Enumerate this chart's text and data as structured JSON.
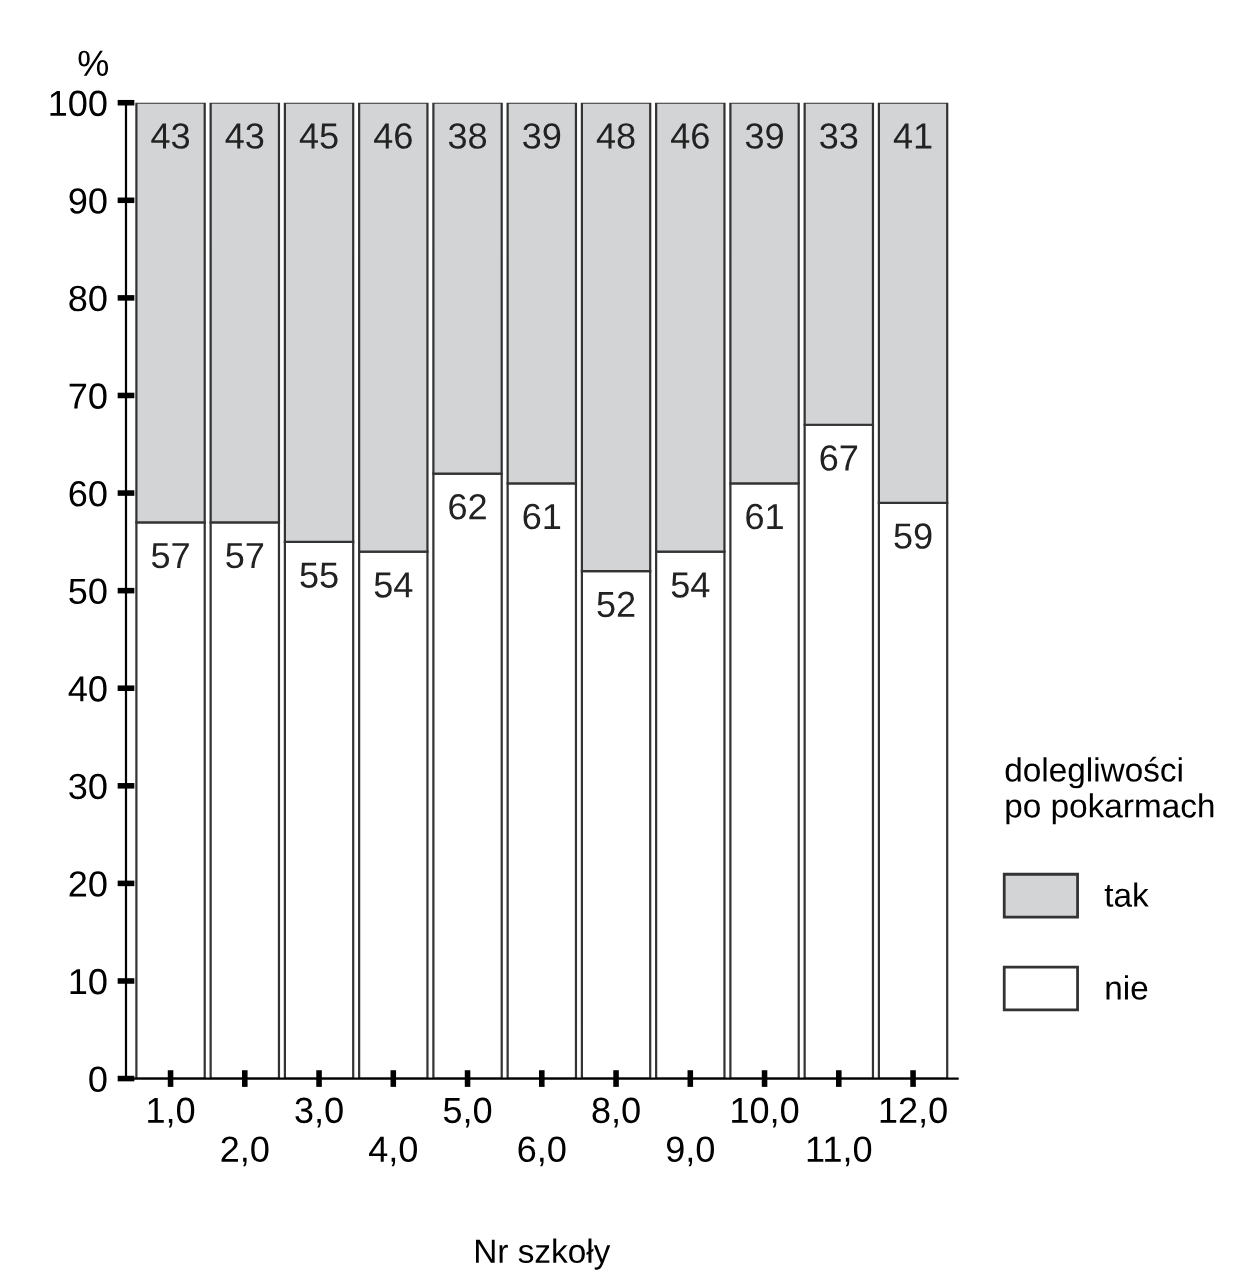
{
  "chart_data": {
    "type": "bar",
    "stacked": true,
    "xlabel": "Nr szkoły",
    "ylabel": "%",
    "categories": [
      "1,0",
      "2,0",
      "3,0",
      "4,0",
      "5,0",
      "6,0",
      "8,0",
      "9,0",
      "10,0",
      "11,0",
      "12,0"
    ],
    "series": [
      {
        "name": "nie",
        "color": "#ffffff",
        "values": [
          57,
          57,
          55,
          54,
          62,
          61,
          52,
          54,
          61,
          67,
          59
        ]
      },
      {
        "name": "tak",
        "color": "#d3d4d6",
        "values": [
          43,
          43,
          45,
          46,
          38,
          39,
          48,
          46,
          39,
          33,
          41
        ]
      }
    ],
    "ylim": [
      0,
      100
    ],
    "yticks": [
      0,
      10,
      20,
      30,
      40,
      50,
      60,
      70,
      80,
      90,
      100
    ],
    "data_labels": true,
    "grid": false,
    "legend": "right",
    "legend_title": "dolegliwości\npo pokarmach"
  }
}
